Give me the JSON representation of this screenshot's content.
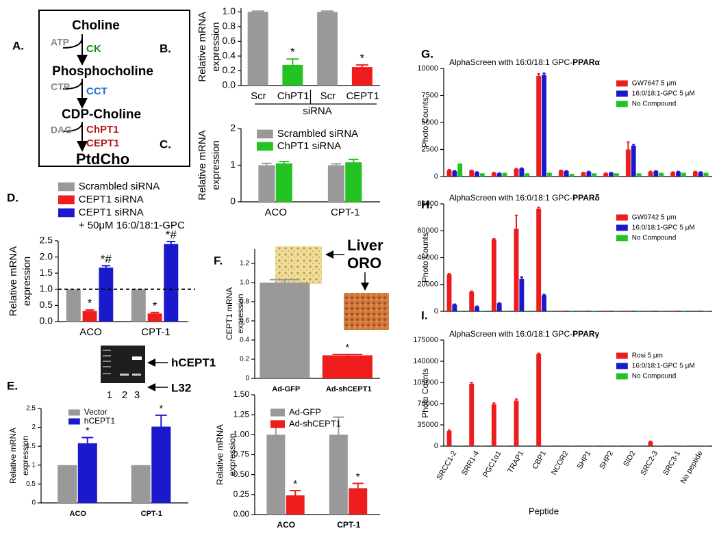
{
  "diagram": {
    "panel": "A.",
    "nodes": [
      "Choline",
      "Phosphocholine",
      "CDP-Choline",
      "PtdCho"
    ],
    "steps": [
      {
        "cofactor": "ATP",
        "enzymes": [
          "CK"
        ]
      },
      {
        "cofactor": "CTP",
        "enzymes": [
          "CCT"
        ]
      },
      {
        "cofactor": "DAG",
        "enzymes": [
          "ChPT1",
          "CEPT1"
        ]
      }
    ]
  },
  "gel": {
    "bands": [
      "hCEPT1",
      "L32"
    ],
    "lanes": [
      "1",
      "2",
      "3"
    ]
  },
  "oro": {
    "label": [
      "Liver",
      "ORO"
    ]
  },
  "chart_data": [
    {
      "type": "bar",
      "panel": "B.",
      "ylabel": [
        "Relative mRNA",
        "expression"
      ],
      "categories": [
        "Scr",
        "ChPT1",
        "Scr",
        "CEPT1"
      ],
      "group_label": "siRNA",
      "ylim": [
        0,
        1.05
      ],
      "yticks": [
        {
          "value": 0,
          "label": "0.0"
        },
        0.2,
        0.4,
        0.6,
        0.8,
        {
          "value": 1,
          "label": "1.0"
        }
      ],
      "series": [
        {
          "colors": [
            "#999999",
            "#22c322",
            "#999999",
            "#ee1c1c"
          ],
          "values": [
            1.0,
            0.28,
            1.0,
            0.25
          ],
          "errors": [
            0.01,
            0.08,
            0.01,
            0.03
          ],
          "markers": [
            null,
            "*",
            null,
            "*"
          ]
        }
      ]
    },
    {
      "type": "bar",
      "panel": "C.",
      "ylabel": [
        "Relative mRNA",
        "expression"
      ],
      "categories": [
        "ACO",
        "CPT-1"
      ],
      "ylim": [
        0,
        2
      ],
      "yticks": [
        0,
        1,
        2
      ],
      "series": [
        {
          "name": "Scrambled siRNA",
          "color": "#999999",
          "values": [
            1.0,
            1.0
          ],
          "errors": [
            0.05,
            0.04
          ]
        },
        {
          "name": "ChPT1 siRNA",
          "color": "#22c322",
          "values": [
            1.05,
            1.08
          ],
          "errors": [
            0.05,
            0.08
          ]
        }
      ]
    },
    {
      "type": "bar",
      "panel": "D.",
      "ylabel": [
        "Relative mRNA",
        "expression"
      ],
      "categories": [
        "ACO",
        "CPT-1"
      ],
      "ylim": [
        0,
        2.5
      ],
      "yticks": [
        {
          "value": 0,
          "label": "0.0"
        },
        0.5,
        {
          "value": 1,
          "label": "1.0"
        },
        1.5,
        {
          "value": 2,
          "label": "2.0"
        },
        2.5
      ],
      "refline": 1.0,
      "series": [
        {
          "name": [
            "Scrambled siRNA"
          ],
          "color": "#999999",
          "values": [
            1.0,
            1.0
          ],
          "errors": [
            0,
            0
          ]
        },
        {
          "name": [
            "CEPT1 siRNA"
          ],
          "color": "#ee1c1c",
          "values": [
            0.33,
            0.25
          ],
          "errors": [
            0.03,
            0.03
          ],
          "markers": [
            "*",
            "*"
          ]
        },
        {
          "name": [
            "CEPT1 siRNA",
            "+ 50μM 16:0/18:1-GPC"
          ],
          "color": "#1a1acc",
          "values": [
            1.67,
            2.4
          ],
          "errors": [
            0.06,
            0.08
          ],
          "markers": [
            "*#",
            "*#"
          ]
        }
      ]
    },
    {
      "type": "bar",
      "panel": "E.",
      "ylabel": [
        "Relative mRNA",
        "expression"
      ],
      "categories": [
        "ACO",
        "CPT-1"
      ],
      "ylim": [
        0,
        2.5
      ],
      "yticks": [
        0,
        0.5,
        1,
        1.5,
        2,
        2.5
      ],
      "series": [
        {
          "name": "Vector",
          "color": "#999999",
          "values": [
            1.0,
            1.0
          ],
          "errors": [
            0,
            0
          ]
        },
        {
          "name": "hCEPT1",
          "color": "#1a1acc",
          "values": [
            1.58,
            2.02
          ],
          "errors": [
            0.15,
            0.3
          ],
          "markers": [
            "*",
            "*"
          ]
        }
      ]
    },
    {
      "type": "bar",
      "panel": "F.",
      "ylabel": [
        "CEPT1 mRNA",
        "expression"
      ],
      "categories": [
        "Ad-GFP",
        "Ad-shCEPT1"
      ],
      "ylim": [
        0,
        1.35
      ],
      "yticks": [
        0,
        0.2,
        0.4,
        0.6,
        0.8,
        {
          "value": 1,
          "label": "1.0"
        },
        {
          "value": 1.2,
          "label": "1.2"
        }
      ],
      "series": [
        {
          "colors": [
            "#999999",
            "#ee1c1c"
          ],
          "values": [
            1.0,
            0.24
          ],
          "errors": [
            0.03,
            0.01
          ],
          "markers": [
            null,
            "*"
          ]
        }
      ]
    },
    {
      "type": "bar",
      "ylabel": [
        "Relative mRNA",
        "expression"
      ],
      "categories": [
        "ACO",
        "CPT-1"
      ],
      "ylim": [
        0,
        1.5
      ],
      "yticks": [
        {
          "value": 0,
          "label": "0.00"
        },
        0.25,
        {
          "value": 0.5,
          "label": "0.50"
        },
        0.75,
        {
          "value": 1,
          "label": "1.00"
        },
        1.25,
        {
          "value": 1.5,
          "label": "1.50"
        }
      ],
      "series": [
        {
          "name": "Ad-GFP",
          "color": "#999999",
          "values": [
            1.0,
            1.0
          ],
          "errors": [
            0.15,
            0.22
          ]
        },
        {
          "name": "Ad-shCEPT1",
          "color": "#ee1c1c",
          "values": [
            0.24,
            0.33
          ],
          "errors": [
            0.06,
            0.06
          ],
          "markers": [
            "*",
            "*"
          ]
        }
      ]
    },
    {
      "type": "bar",
      "panel": "G.",
      "title": "AlphaScreen with 16:0/18:1 GPC-",
      "title_bold": "PPARα",
      "ylabel": [
        "Photo Counts"
      ],
      "ylim": [
        0,
        10000
      ],
      "yticks": [
        0,
        2500,
        5000,
        7500,
        10000
      ],
      "series": [
        {
          "name": "GW7647 5 μm",
          "color": "#ee1c1c",
          "values": [
            600,
            550,
            350,
            700,
            9300,
            550,
            350,
            300,
            2500,
            450,
            400,
            450
          ],
          "errors": [
            40,
            30,
            20,
            30,
            200,
            20,
            20,
            20,
            700,
            20,
            20,
            20
          ]
        },
        {
          "name": "16:0/18:1-GPC 5 μM",
          "color": "#1a1acc",
          "values": [
            500,
            400,
            300,
            750,
            9400,
            500,
            450,
            350,
            2850,
            500,
            450,
            400
          ],
          "errors": [
            30,
            20,
            20,
            30,
            150,
            20,
            20,
            20,
            100,
            20,
            20,
            20
          ]
        },
        {
          "name": "No Compound",
          "color": "#22c322",
          "values": [
            1200,
            300,
            350,
            300,
            350,
            250,
            300,
            300,
            300,
            350,
            350,
            350
          ]
        }
      ]
    },
    {
      "type": "bar",
      "panel": "H.",
      "title": "AlphaScreen with 16:0/18:1 GPC-",
      "title_bold": "PPARδ",
      "ylabel": [
        "Photo Counts"
      ],
      "ylim": [
        0,
        80000
      ],
      "yticks": [
        0,
        20000,
        40000,
        60000,
        80000
      ],
      "series": [
        {
          "name": "GW0742 5 μm",
          "color": "#ee1c1c",
          "values": [
            27500,
            14500,
            53500,
            61500,
            76500,
            500,
            500,
            500,
            500,
            500,
            500,
            500
          ],
          "errors": [
            500,
            500,
            500,
            10000,
            1000,
            0,
            0,
            0,
            0,
            0,
            0,
            0
          ]
        },
        {
          "name": "16:0/18:1-GPC 5 μM",
          "color": "#1a1acc",
          "values": [
            5000,
            3500,
            6000,
            24000,
            12000,
            500,
            500,
            500,
            500,
            500,
            500,
            500
          ],
          "errors": [
            300,
            300,
            300,
            1500,
            500,
            0,
            0,
            0,
            0,
            0,
            0,
            0
          ]
        },
        {
          "name": "No Compound",
          "color": "#22c322",
          "values": [
            500,
            500,
            500,
            500,
            500,
            500,
            500,
            500,
            500,
            500,
            500,
            500
          ]
        }
      ]
    },
    {
      "type": "bar",
      "panel": "I.",
      "title": "AlphaScreen with 16:0/18:1 GPC-",
      "title_bold": "PPARγ",
      "ylabel": [
        "Photo Counts"
      ],
      "xlabel": "Peptide",
      "categories": [
        "SRCC1-2",
        "SRR1-4",
        "PGC1α1",
        "TRAP1",
        "CBP1",
        "NCOR2",
        "SHP1",
        "SHP2",
        "SID2",
        "SRC2-3",
        "SRC3-1",
        "No peptide"
      ],
      "ylim": [
        0,
        175000
      ],
      "yticks": [
        0,
        35000,
        70000,
        105000,
        140000,
        175000
      ],
      "series": [
        {
          "name": "Rosi 5 μm",
          "color": "#ee1c1c",
          "values": [
            25000,
            103000,
            69000,
            75000,
            152000,
            300,
            300,
            300,
            300,
            7000,
            300,
            300
          ],
          "errors": [
            1500,
            2000,
            2000,
            2500,
            1000,
            0,
            0,
            0,
            0,
            800,
            0,
            0
          ]
        },
        {
          "name": "16:0/18:1-GPC 5 μM",
          "color": "#1a1acc",
          "values": [
            300,
            300,
            300,
            300,
            300,
            300,
            300,
            300,
            300,
            300,
            300,
            300
          ]
        },
        {
          "name": "No Compound",
          "color": "#22c322",
          "values": [
            300,
            300,
            300,
            300,
            300,
            300,
            300,
            300,
            300,
            300,
            300,
            300
          ]
        }
      ]
    }
  ]
}
